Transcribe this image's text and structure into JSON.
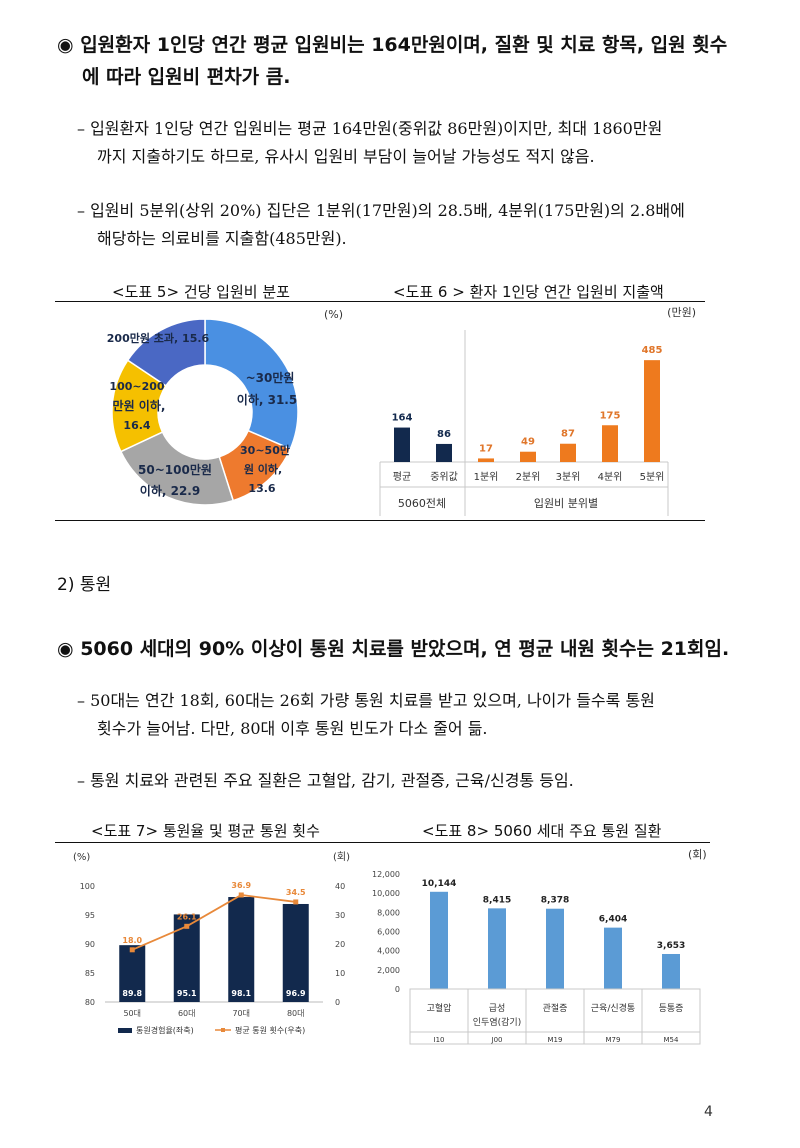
{
  "section1": {
    "headline_line1": "◉ 입원환자 1인당 연간 평균 입원비는 164만원이며, 질환 및 치료 항목, 입원 횟수",
    "headline_line2": "에 따라 입원비 편차가 큼.",
    "para1_line1": "– 입원환자 1인당 연간 입원비는 평균 164만원(중위값 86만원)이지만, 최대 1860만원",
    "para1_line2": "까지 지출하기도 하므로, 유사시 입원비 부담이 늘어날 가능성도 적지 않음.",
    "para2_line1": "– 입원비 5분위(상위 20%) 집단은 1분위(17만원)의 28.5배, 4분위(175만원)의 2.8배에",
    "para2_line2": "해당하는 의료비를 지출함(485만원)."
  },
  "fig5": {
    "title": "<도표 5> 건당 입원비 분포",
    "unit": "(%)",
    "chart_data": {
      "type": "pie",
      "title": "<도표 5> 건당 입원비 분포",
      "unit": "(%)",
      "slices": [
        {
          "label": "~30만원 이하",
          "value": 31.5,
          "color": "#4a90e2"
        },
        {
          "label": "30~50만원 이하",
          "value": 13.6,
          "color": "#ee7a2e"
        },
        {
          "label": "50~100만원 이하",
          "value": 22.9,
          "color": "#a6a6a6"
        },
        {
          "label": "100~200만원 이하",
          "value": 16.4,
          "color": "#f5c000"
        },
        {
          "label": "200만원 초과",
          "value": 15.6,
          "color": "#4a68c4"
        }
      ]
    },
    "labels": {
      "s1_a": "~30만원",
      "s1_b": "이하, 31.5",
      "s2_a": "30~50만",
      "s2_b": "원 이하,",
      "s2_c": "13.6",
      "s3_a": "50~100만원",
      "s3_b": "이하, 22.9",
      "s4_a": "100~200",
      "s4_b": "만원 이하,",
      "s4_c": "16.4",
      "s5_a": "200만원 초과, 15.6"
    }
  },
  "fig6": {
    "title": "<도표 6 > 환자 1인당 연간 입원비 지출액",
    "unit": "(만원)",
    "group1": "5060전체",
    "group2": "입원비 분위별",
    "chart_data": {
      "type": "bar",
      "title": "<도표 6 > 환자 1인당 연간 입원비 지출액",
      "unit": "(만원)",
      "categories": [
        "평균",
        "중위값",
        "1분위",
        "2분위",
        "3분위",
        "4분위",
        "5분위"
      ],
      "values": [
        164,
        86,
        17,
        49,
        87,
        175,
        485
      ],
      "groups": [
        {
          "name": "5060전체",
          "categories": [
            "평균",
            "중위값"
          ],
          "color": "#12294d"
        },
        {
          "name": "입원비 분위별",
          "categories": [
            "1분위",
            "2분위",
            "3분위",
            "4분위",
            "5분위"
          ],
          "color": "#ee7a1e"
        }
      ]
    }
  },
  "section2": {
    "heading": "2) 통원",
    "headline": "◉ 5060 세대의 90% 이상이 통원 치료를 받았으며, 연 평균 내원 횟수는 21회임.",
    "para1_line1": "– 50대는 연간 18회, 60대는 26회 가량 통원 치료를 받고 있으며, 나이가 들수록 통원",
    "para1_line2": "횟수가 늘어남. 다만, 80대 이후 통원 빈도가 다소 줄어 듦.",
    "para2_line1": "– 통원 치료와 관련된 주요 질환은 고혈압, 감기, 관절증, 근육/신경통 등임."
  },
  "fig7": {
    "title": "<도표 7> 통원율 및 평균 통원 횟수",
    "unit_left": "(%)",
    "unit_right": "(회)",
    "legend_bar": "통원경험율(좌축)",
    "legend_line": "평균 통원 횟수(우축)",
    "chart_data": {
      "type": "bar",
      "title": "<도표 7> 통원율 및 평균 통원 횟수",
      "categories": [
        "50대",
        "60대",
        "70대",
        "80대"
      ],
      "series": [
        {
          "name": "통원경험율(좌축)",
          "axis": "left",
          "type": "bar",
          "values": [
            89.8,
            95.1,
            98.1,
            96.9
          ],
          "color": "#12294d"
        },
        {
          "name": "평균 통원 횟수(우축)",
          "axis": "right",
          "type": "line",
          "values": [
            18.0,
            26.1,
            36.9,
            34.5
          ],
          "color": "#e8893a"
        }
      ],
      "ylim_left": [
        80,
        100
      ],
      "yticks_left": [
        80,
        85,
        90,
        95,
        100
      ],
      "ylim_right": [
        0,
        40
      ],
      "yticks_right": [
        0,
        10,
        20,
        30,
        40
      ]
    }
  },
  "fig8": {
    "title": "<도표 8> 5060 세대 주요 통원 질환",
    "unit": "(회)",
    "chart_data": {
      "type": "bar",
      "title": "<도표 8> 5060 세대 주요 통원 질환",
      "categories": [
        "고혈압",
        "급성 인두염(감기)",
        "관절증",
        "근육/신경통",
        "등통증"
      ],
      "codes": [
        "I10",
        "J00",
        "M19",
        "M79",
        "M54"
      ],
      "values": [
        10144,
        8415,
        8378,
        6404,
        3653
      ],
      "value_labels": [
        "10,144",
        "8,415",
        "8,378",
        "6,404",
        "3,653"
      ],
      "ylim": [
        0,
        12000
      ],
      "yticks": [
        "0",
        "2,000",
        "4,000",
        "6,000",
        "8,000",
        "10,000",
        "12,000"
      ],
      "color": "#5b9bd5"
    },
    "cat_labels": {
      "c2_a": "급성",
      "c2_b": "인두염(감기)"
    }
  },
  "page_number": "4"
}
